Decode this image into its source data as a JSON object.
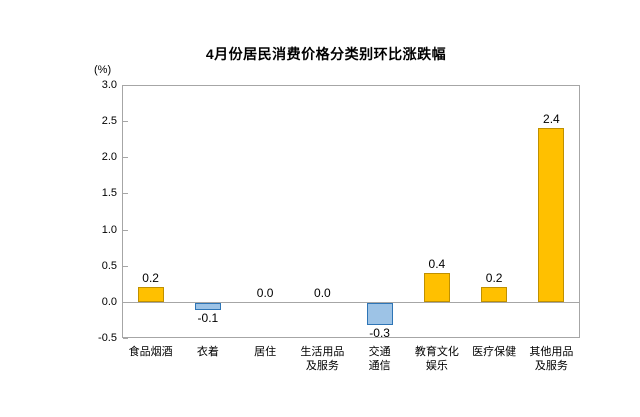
{
  "chart_data": {
    "type": "bar",
    "title": "4月份居民消费价格分类别环比涨跌幅",
    "ylabel": "(%)",
    "categories": [
      "食品烟酒",
      "衣着",
      "居住",
      "生活用品\n及服务",
      "交通\n通信",
      "教育文化\n娱乐",
      "医疗保健",
      "其他用品\n及服务"
    ],
    "values": [
      0.2,
      -0.1,
      0.0,
      0.0,
      -0.3,
      0.4,
      0.2,
      2.4
    ],
    "value_labels": [
      "0.2",
      "-0.1",
      "0.0",
      "0.0",
      "-0.3",
      "0.4",
      "0.2",
      "2.4"
    ],
    "yticks": [
      3.0,
      2.5,
      2.0,
      1.5,
      1.0,
      0.5,
      0.0,
      -0.5
    ],
    "ytick_labels": [
      "3.0",
      "2.5",
      "2.0",
      "1.5",
      "1.0",
      "0.5",
      "0.0",
      "-0.5"
    ],
    "ylim": [
      -0.5,
      3.0
    ],
    "grid": false,
    "legend_position": "none",
    "colors": {
      "positive_fill": "#FFC000",
      "positive_border": "#BF9000",
      "negative_fill": "#9DC3E6",
      "negative_border": "#2E75B6",
      "axis_frame": "#A6A6A6",
      "text": "#000000"
    }
  }
}
